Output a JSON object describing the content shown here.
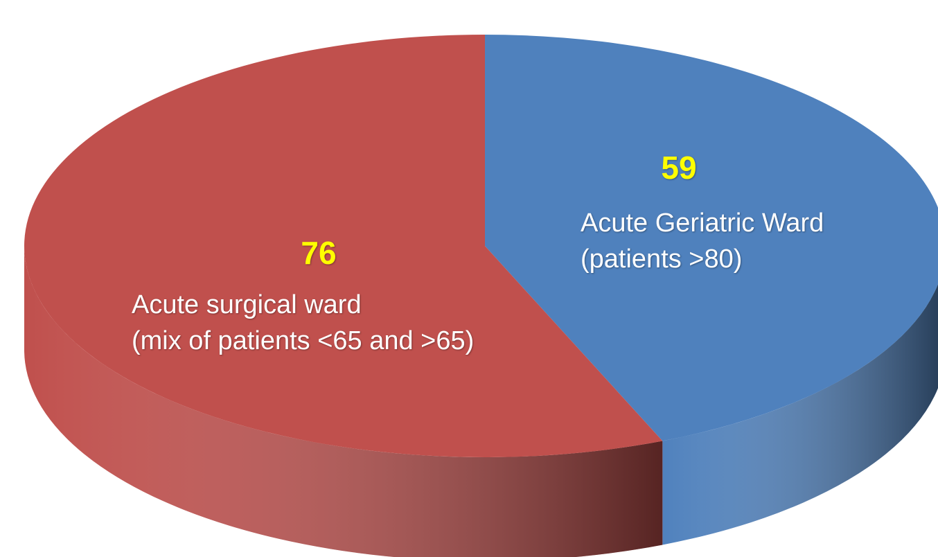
{
  "chart_data": {
    "type": "pie",
    "categories": [
      "Acute Geriatric Ward\n(patients >80)",
      "Acute surgical ward\n(mix of patients <65 and >65)"
    ],
    "values": [
      59,
      76
    ],
    "colors": [
      "#4f81bd",
      "#c0504d"
    ]
  }
}
